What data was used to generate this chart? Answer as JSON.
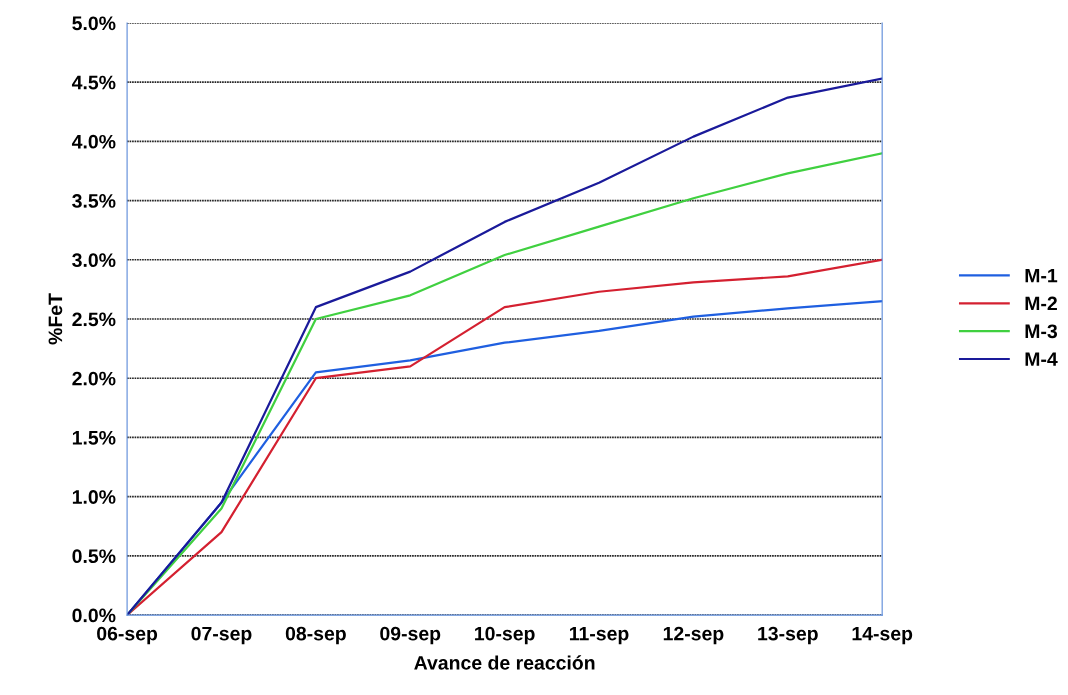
{
  "chart_data": {
    "type": "line",
    "xlabel": "Avance de reacción",
    "ylabel": "%FeT",
    "categories": [
      "06-sep",
      "07-sep",
      "08-sep",
      "09-sep",
      "10-sep",
      "11-sep",
      "12-sep",
      "13-sep",
      "14-sep"
    ],
    "series": [
      {
        "name": "M-1",
        "color": "#1f5fe0",
        "values": [
          0,
          0.95,
          2.05,
          2.15,
          2.3,
          2.4,
          2.52,
          2.59,
          2.65
        ]
      },
      {
        "name": "M-2",
        "color": "#d42030",
        "values": [
          0,
          0.7,
          2.0,
          2.1,
          2.6,
          2.73,
          2.81,
          2.86,
          3.0
        ]
      },
      {
        "name": "M-3",
        "color": "#40d040",
        "values": [
          0,
          0.9,
          2.5,
          2.7,
          3.04,
          3.28,
          3.52,
          3.73,
          3.9
        ]
      },
      {
        "name": "M-4",
        "color": "#1a1a9a",
        "values": [
          0,
          0.95,
          2.6,
          2.9,
          3.32,
          3.65,
          4.04,
          4.37,
          4.53
        ]
      }
    ],
    "ylim": [
      0,
      5
    ],
    "yticks": [
      {
        "value": 0,
        "label": "0.0%"
      },
      {
        "value": 0.5,
        "label": "0.5%"
      },
      {
        "value": 1,
        "label": "1.0%"
      },
      {
        "value": 1.5,
        "label": "1.5%"
      },
      {
        "value": 2,
        "label": "2.0%"
      },
      {
        "value": 2.5,
        "label": "2.5%"
      },
      {
        "value": 3,
        "label": "3.0%"
      },
      {
        "value": 3.5,
        "label": "3.5%"
      },
      {
        "value": 4,
        "label": "4.0%"
      },
      {
        "value": 4.5,
        "label": "4.5%"
      },
      {
        "value": 5,
        "label": "5.0%"
      }
    ],
    "grid": "y",
    "legend": "right",
    "marker": "none",
    "line_style": "solid"
  }
}
